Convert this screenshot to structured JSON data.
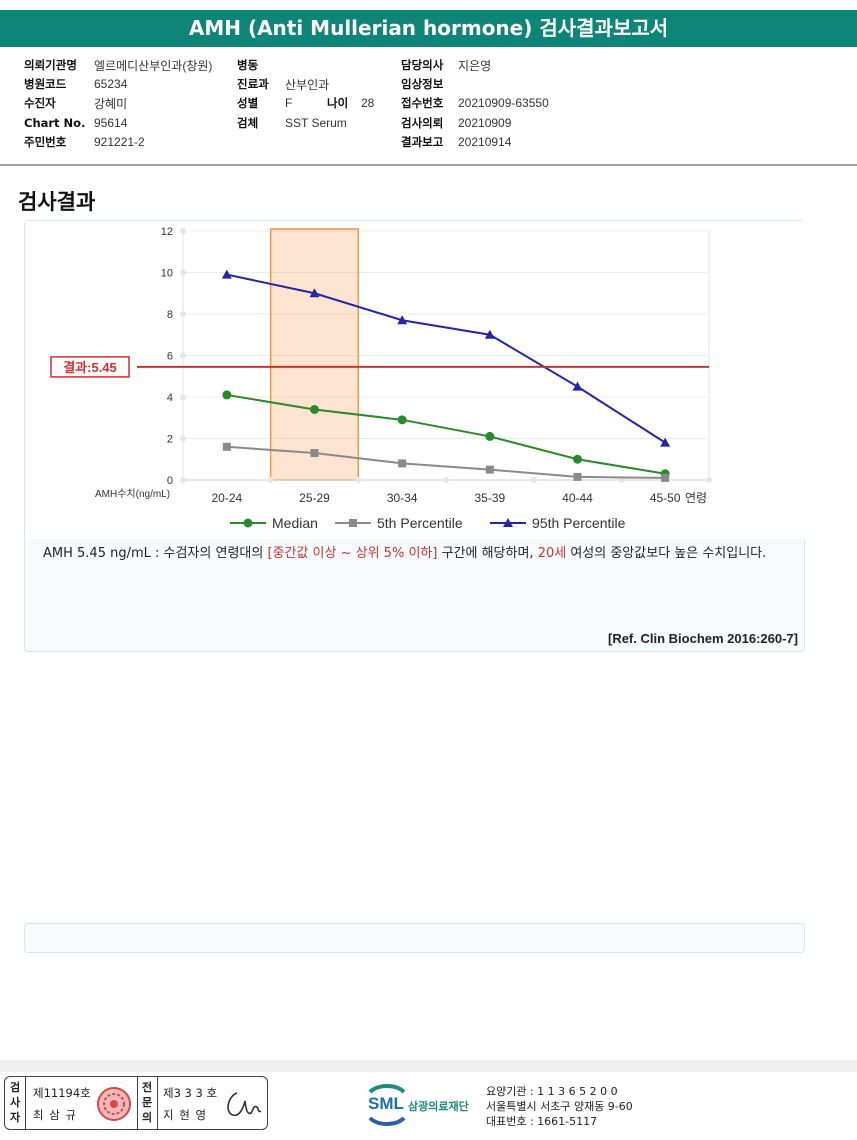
{
  "header": {
    "title": "AMH (Anti Mullerian hormone) 검사결과보고서"
  },
  "info": {
    "hospital_label": "의뢰기관명",
    "hospital": "엘르메디산부인과(창원)",
    "code_label": "병원코드",
    "code": "65234",
    "patient_label": "수진자",
    "patient": "강혜미",
    "chart_label": "Chart No.",
    "chart": "95614",
    "id_label": "주민번호",
    "id": "921221-2",
    "ward_label": "병동",
    "ward": "",
    "dept_label": "진료과",
    "dept": "산부인과",
    "sex_label": "성별",
    "sex": "F",
    "age_label": "나이",
    "age": "28",
    "specimen_label": "검체",
    "specimen": "SST Serum",
    "doctor_label": "담당의사",
    "doctor": "지은영",
    "clinical_label": "임상정보",
    "clinical": "",
    "receipt_label": "접수번호",
    "receipt": "20210909-63550",
    "request_label": "검사의뢰",
    "request": "20210909",
    "report_label": "결과보고",
    "report": "20210914"
  },
  "section": {
    "title": "검사결과"
  },
  "chart_data": {
    "type": "line",
    "categories": [
      "20-24",
      "25-29",
      "30-34",
      "35-39",
      "40-44",
      "45-50"
    ],
    "series": [
      {
        "name": "Median",
        "values": [
          4.1,
          3.4,
          2.9,
          2.1,
          1.0,
          0.3
        ],
        "color": "#2a8a2a",
        "marker": "circle"
      },
      {
        "name": "5th Percentile",
        "values": [
          1.6,
          1.3,
          0.8,
          0.5,
          0.15,
          0.1
        ],
        "color": "#8a8a8a",
        "marker": "square"
      },
      {
        "name": "95th Percentile",
        "values": [
          9.9,
          9.0,
          7.7,
          7.0,
          4.5,
          1.8
        ],
        "color": "#2525a8",
        "marker": "triangle"
      }
    ],
    "ylim": [
      0,
      12
    ],
    "yticks": [
      0,
      2,
      4,
      6,
      8,
      10,
      12
    ],
    "ylabel": "AMH수치(ng/mL)",
    "xlabel": "연령",
    "highlight_category": "25-29",
    "highlight_color": "#f6b27a",
    "result_value": 5.45,
    "result_label": "결과:5.45",
    "result_color": "#d32f2f",
    "legend_position": "bottom"
  },
  "description": {
    "part1": "AMH  5.45 ng/mL : 수검자의 연령대의 ",
    "highlight1": "[중간값 이상 ~ 상위 5% 이하]",
    "part2": " 구간에 해당하며, ",
    "highlight2": "20세",
    "part3": " 여성의 중앙값보다 높은 수치입니다.",
    "reference": "[Ref. Clin Biochem 2016:260-7]"
  },
  "signature": {
    "examiner_label": "검사자",
    "examiner_no": "제11194호",
    "examiner_name": "최 삼 규",
    "reviewer_label": "전문의",
    "reviewer_no": "제3 3 3 호",
    "reviewer_name": "지 현 영"
  },
  "footer": {
    "logo_text": "SML",
    "foundation": "삼광의료재단",
    "institution_code": "요양기관 : 1 1 3 6 5 2 0 0",
    "address": "서울특별시 서초구 양재동 9-60",
    "phone": "대표번호 : 1661-5117"
  }
}
